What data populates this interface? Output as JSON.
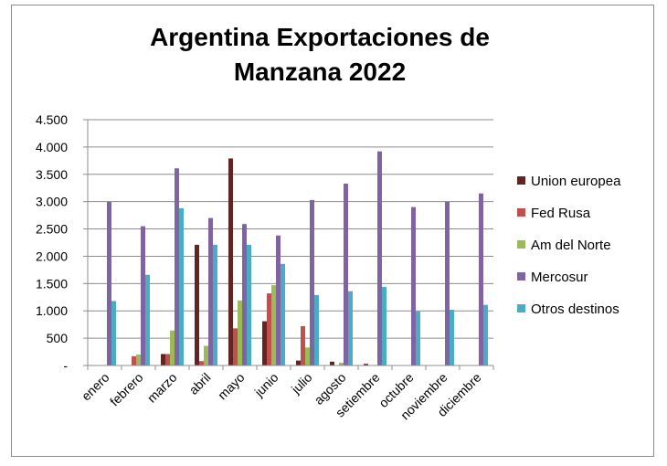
{
  "title_line1": "Argentina  Exportaciones de",
  "title_line2": "Manzana 2022",
  "chart_data": {
    "type": "bar",
    "title": "Argentina  Exportaciones de Manzana 2022",
    "categories": [
      "enero",
      "febrero",
      "marzo",
      "abril",
      "mayo",
      "junio",
      "julio",
      "agosto",
      "setiembre",
      "octubre",
      "noviembre",
      "diciembre"
    ],
    "ylim": [
      0,
      4500
    ],
    "yticks": [
      0,
      500,
      1000,
      1500,
      2000,
      2500,
      3000,
      3500,
      4000,
      4500
    ],
    "ytick_labels": [
      "-",
      "500",
      "1.000",
      "1.500",
      "2.000",
      "2.500",
      "3.000",
      "3.500",
      "4.000",
      "4.500"
    ],
    "grid": true,
    "legend_position": "right",
    "series": [
      {
        "name": "Union europea",
        "color": "#632523",
        "values": [
          0,
          0,
          210,
          2210,
          3790,
          810,
          90,
          70,
          30,
          0,
          0,
          0
        ]
      },
      {
        "name": "Fed Rusa",
        "color": "#c0504d",
        "values": [
          0,
          170,
          210,
          80,
          680,
          1320,
          720,
          0,
          0,
          0,
          0,
          0
        ]
      },
      {
        "name": "Am del Norte",
        "color": "#9bbb59",
        "values": [
          0,
          200,
          640,
          360,
          1190,
          1470,
          330,
          50,
          0,
          0,
          0,
          0
        ]
      },
      {
        "name": "Mercosur",
        "color": "#8064a2",
        "values": [
          3000,
          2550,
          3610,
          2700,
          2590,
          2380,
          3030,
          3330,
          3920,
          2900,
          3000,
          3150
        ]
      },
      {
        "name": "Otros destinos",
        "color": "#4bacc6",
        "values": [
          1180,
          1660,
          2880,
          2210,
          2210,
          1860,
          1290,
          1360,
          1440,
          990,
          1020,
          1110
        ]
      }
    ]
  }
}
